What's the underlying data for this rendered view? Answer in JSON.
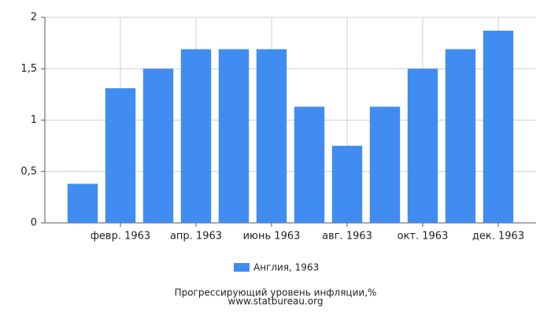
{
  "chart_data": {
    "type": "bar",
    "categories": [
      null,
      "февр. 1963",
      null,
      "апр. 1963",
      null,
      "июнь 1963",
      null,
      "авг. 1963",
      null,
      "окт. 1963",
      null,
      "дек. 1963"
    ],
    "series": [
      {
        "name": "Англия, 1963",
        "color": "#418cf0",
        "values": [
          0.38,
          1.31,
          1.5,
          1.69,
          1.69,
          1.69,
          1.13,
          0.75,
          1.13,
          1.5,
          1.69,
          1.87
        ]
      }
    ],
    "ylim": [
      0,
      2
    ],
    "yticks": [
      0,
      {
        "value": 0.5,
        "label": "0,5"
      },
      1,
      {
        "value": 1.5,
        "label": "1,5"
      },
      2
    ],
    "grid": true,
    "footer": [
      "Прогрессирующий уровень инфляции,%",
      "www.statbureau.org"
    ]
  }
}
